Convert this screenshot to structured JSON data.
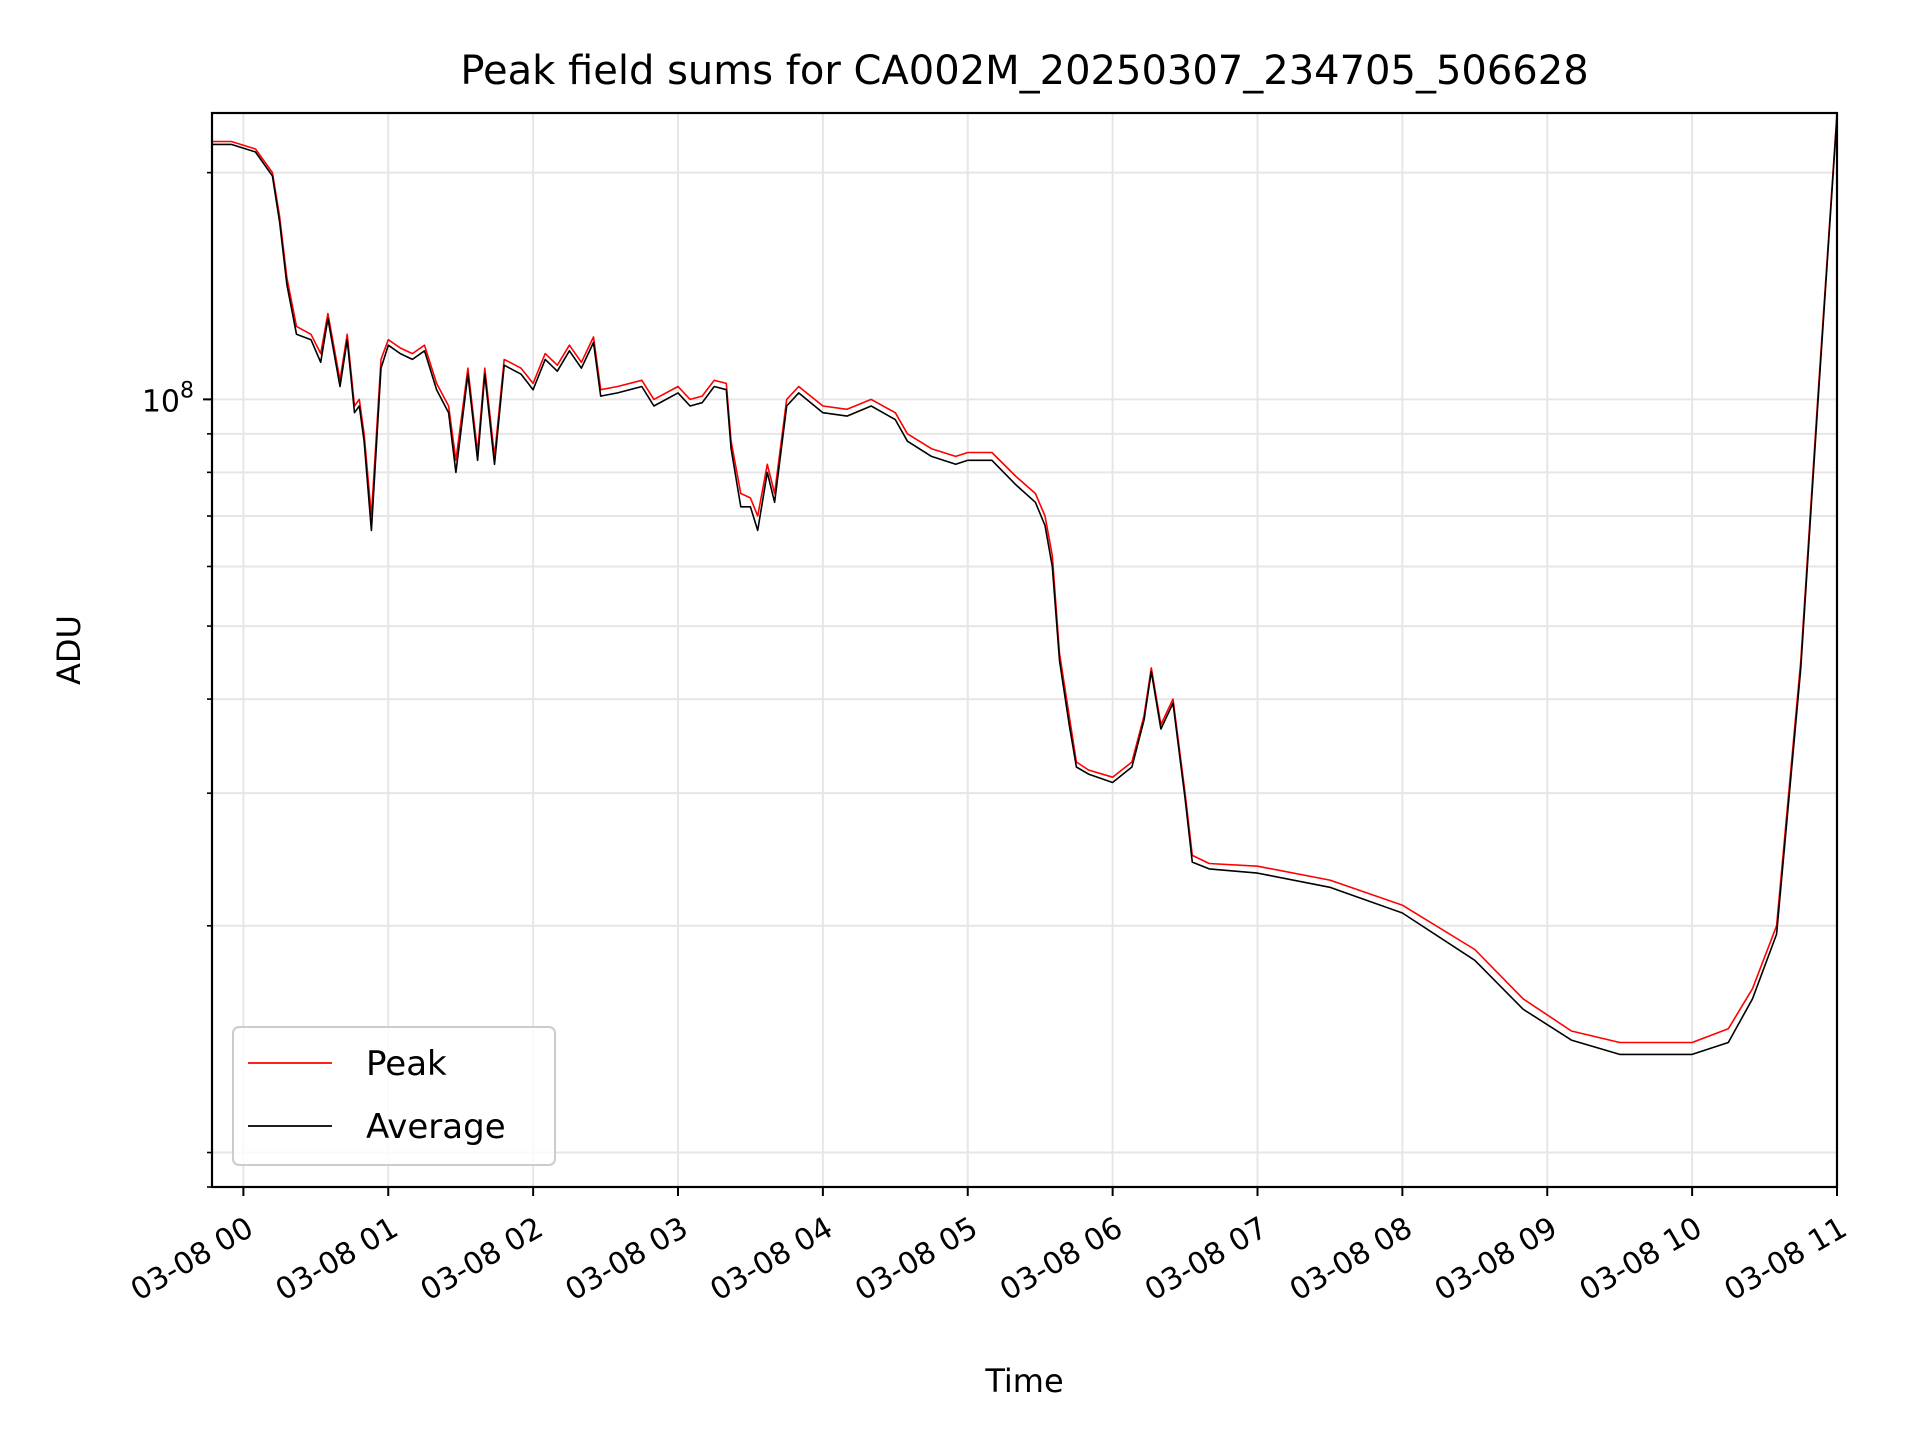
{
  "chart_data": {
    "type": "line",
    "title": "Peak field sums for CA002M_20250307_234705_506628",
    "xlabel": "Time",
    "ylabel": "ADU",
    "y_scale": "log",
    "y_tick_label": {
      "base": "10",
      "exponent": "8",
      "value": 100000000
    },
    "ylim": [
      9000000,
      240000000
    ],
    "xlim": [
      "2025-03-07 23:47",
      "2025-03-08 11:00"
    ],
    "x_ticks": [
      "03-08 00",
      "03-08 01",
      "03-08 02",
      "03-08 03",
      "03-08 04",
      "03-08 05",
      "03-08 06",
      "03-08 07",
      "03-08 08",
      "03-08 09",
      "03-08 10",
      "03-08 11"
    ],
    "x_tick_times": [
      "2025-03-08 00:00",
      "2025-03-08 01:00",
      "2025-03-08 02:00",
      "2025-03-08 03:00",
      "2025-03-08 04:00",
      "2025-03-08 05:00",
      "2025-03-08 06:00",
      "2025-03-08 07:00",
      "2025-03-08 08:00",
      "2025-03-08 09:00",
      "2025-03-08 10:00",
      "2025-03-08 11:00"
    ],
    "grid": true,
    "legend_position": "lower-left",
    "series": [
      {
        "name": "Peak",
        "color": "#ff0000",
        "points": [
          [
            "2025-03-07 23:47",
            220000000
          ],
          [
            "2025-03-07 23:55",
            220000000
          ],
          [
            "2025-03-08 00:05",
            215000000
          ],
          [
            "2025-03-08 00:12",
            200000000
          ],
          [
            "2025-03-08 00:15",
            175000000
          ],
          [
            "2025-03-08 00:18",
            145000000
          ],
          [
            "2025-03-08 00:22",
            125000000
          ],
          [
            "2025-03-08 00:28",
            122000000
          ],
          [
            "2025-03-08 00:32",
            115000000
          ],
          [
            "2025-03-08 00:35",
            130000000
          ],
          [
            "2025-03-08 00:40",
            106000000
          ],
          [
            "2025-03-08 00:43",
            122000000
          ],
          [
            "2025-03-08 00:46",
            98000000
          ],
          [
            "2025-03-08 00:48",
            100000000
          ],
          [
            "2025-03-08 00:50",
            90000000
          ],
          [
            "2025-03-08 00:53",
            70000000
          ],
          [
            "2025-03-08 00:57",
            113000000
          ],
          [
            "2025-03-08 01:00",
            120000000
          ],
          [
            "2025-03-08 01:05",
            117000000
          ],
          [
            "2025-03-08 01:10",
            115000000
          ],
          [
            "2025-03-08 01:15",
            118000000
          ],
          [
            "2025-03-08 01:20",
            105000000
          ],
          [
            "2025-03-08 01:25",
            98000000
          ],
          [
            "2025-03-08 01:28",
            83000000
          ],
          [
            "2025-03-08 01:33",
            110000000
          ],
          [
            "2025-03-08 01:37",
            85000000
          ],
          [
            "2025-03-08 01:40",
            110000000
          ],
          [
            "2025-03-08 01:44",
            84000000
          ],
          [
            "2025-03-08 01:48",
            113000000
          ],
          [
            "2025-03-08 01:55",
            110000000
          ],
          [
            "2025-03-08 02:00",
            105000000
          ],
          [
            "2025-03-08 02:05",
            115000000
          ],
          [
            "2025-03-08 02:10",
            111000000
          ],
          [
            "2025-03-08 02:15",
            118000000
          ],
          [
            "2025-03-08 02:20",
            112000000
          ],
          [
            "2025-03-08 02:25",
            121000000
          ],
          [
            "2025-03-08 02:28",
            103000000
          ],
          [
            "2025-03-08 02:35",
            104000000
          ],
          [
            "2025-03-08 02:45",
            106000000
          ],
          [
            "2025-03-08 02:50",
            100000000
          ],
          [
            "2025-03-08 03:00",
            104000000
          ],
          [
            "2025-03-08 03:05",
            100000000
          ],
          [
            "2025-03-08 03:10",
            101000000
          ],
          [
            "2025-03-08 03:15",
            106000000
          ],
          [
            "2025-03-08 03:20",
            105000000
          ],
          [
            "2025-03-08 03:22",
            88000000
          ],
          [
            "2025-03-08 03:26",
            75000000
          ],
          [
            "2025-03-08 03:30",
            74000000
          ],
          [
            "2025-03-08 03:33",
            70000000
          ],
          [
            "2025-03-08 03:37",
            82000000
          ],
          [
            "2025-03-08 03:40",
            75000000
          ],
          [
            "2025-03-08 03:45",
            100000000
          ],
          [
            "2025-03-08 03:50",
            104000000
          ],
          [
            "2025-03-08 04:00",
            98000000
          ],
          [
            "2025-03-08 04:10",
            97000000
          ],
          [
            "2025-03-08 04:20",
            100000000
          ],
          [
            "2025-03-08 04:30",
            96000000
          ],
          [
            "2025-03-08 04:35",
            90000000
          ],
          [
            "2025-03-08 04:45",
            86000000
          ],
          [
            "2025-03-08 04:55",
            84000000
          ],
          [
            "2025-03-08 05:00",
            85000000
          ],
          [
            "2025-03-08 05:10",
            85000000
          ],
          [
            "2025-03-08 05:20",
            79000000
          ],
          [
            "2025-03-08 05:28",
            75000000
          ],
          [
            "2025-03-08 05:32",
            70000000
          ],
          [
            "2025-03-08 05:35",
            62000000
          ],
          [
            "2025-03-08 05:38",
            46000000
          ],
          [
            "2025-03-08 05:42",
            38000000
          ],
          [
            "2025-03-08 05:45",
            33000000
          ],
          [
            "2025-03-08 05:50",
            32200000
          ],
          [
            "2025-03-08 06:00",
            31500000
          ],
          [
            "2025-03-08 06:08",
            33000000
          ],
          [
            "2025-03-08 06:13",
            38000000
          ],
          [
            "2025-03-08 06:16",
            44000000
          ],
          [
            "2025-03-08 06:20",
            37000000
          ],
          [
            "2025-03-08 06:25",
            40000000
          ],
          [
            "2025-03-08 06:30",
            30000000
          ],
          [
            "2025-03-08 06:33",
            24800000
          ],
          [
            "2025-03-08 06:40",
            24200000
          ],
          [
            "2025-03-08 07:00",
            24000000
          ],
          [
            "2025-03-08 07:30",
            23000000
          ],
          [
            "2025-03-08 08:00",
            21300000
          ],
          [
            "2025-03-08 08:30",
            18600000
          ],
          [
            "2025-03-08 08:50",
            16000000
          ],
          [
            "2025-03-08 09:10",
            14500000
          ],
          [
            "2025-03-08 09:30",
            14000000
          ],
          [
            "2025-03-08 10:00",
            14000000
          ],
          [
            "2025-03-08 10:15",
            14600000
          ],
          [
            "2025-03-08 10:25",
            16500000
          ],
          [
            "2025-03-08 10:35",
            20000000
          ],
          [
            "2025-03-08 10:45",
            45000000
          ],
          [
            "2025-03-08 10:52",
            100000000
          ],
          [
            "2025-03-08 11:00",
            240000000
          ]
        ]
      },
      {
        "name": "Average",
        "color": "#000000",
        "points": [
          [
            "2025-03-07 23:47",
            218000000
          ],
          [
            "2025-03-07 23:55",
            218000000
          ],
          [
            "2025-03-08 00:05",
            213000000
          ],
          [
            "2025-03-08 00:12",
            198000000
          ],
          [
            "2025-03-08 00:15",
            172000000
          ],
          [
            "2025-03-08 00:18",
            142000000
          ],
          [
            "2025-03-08 00:22",
            122000000
          ],
          [
            "2025-03-08 00:28",
            120000000
          ],
          [
            "2025-03-08 00:32",
            112000000
          ],
          [
            "2025-03-08 00:35",
            128000000
          ],
          [
            "2025-03-08 00:40",
            104000000
          ],
          [
            "2025-03-08 00:43",
            120000000
          ],
          [
            "2025-03-08 00:46",
            96000000
          ],
          [
            "2025-03-08 00:48",
            98000000
          ],
          [
            "2025-03-08 00:50",
            88000000
          ],
          [
            "2025-03-08 00:53",
            67000000
          ],
          [
            "2025-03-08 00:57",
            110000000
          ],
          [
            "2025-03-08 01:00",
            118000000
          ],
          [
            "2025-03-08 01:05",
            115000000
          ],
          [
            "2025-03-08 01:10",
            113000000
          ],
          [
            "2025-03-08 01:15",
            116000000
          ],
          [
            "2025-03-08 01:20",
            103000000
          ],
          [
            "2025-03-08 01:25",
            96000000
          ],
          [
            "2025-03-08 01:28",
            80000000
          ],
          [
            "2025-03-08 01:33",
            108000000
          ],
          [
            "2025-03-08 01:37",
            83000000
          ],
          [
            "2025-03-08 01:40",
            108000000
          ],
          [
            "2025-03-08 01:44",
            82000000
          ],
          [
            "2025-03-08 01:48",
            111000000
          ],
          [
            "2025-03-08 01:55",
            108000000
          ],
          [
            "2025-03-08 02:00",
            103000000
          ],
          [
            "2025-03-08 02:05",
            113000000
          ],
          [
            "2025-03-08 02:10",
            109000000
          ],
          [
            "2025-03-08 02:15",
            116000000
          ],
          [
            "2025-03-08 02:20",
            110000000
          ],
          [
            "2025-03-08 02:25",
            119000000
          ],
          [
            "2025-03-08 02:28",
            101000000
          ],
          [
            "2025-03-08 02:35",
            102000000
          ],
          [
            "2025-03-08 02:45",
            104000000
          ],
          [
            "2025-03-08 02:50",
            98000000
          ],
          [
            "2025-03-08 03:00",
            102000000
          ],
          [
            "2025-03-08 03:05",
            98000000
          ],
          [
            "2025-03-08 03:10",
            99000000
          ],
          [
            "2025-03-08 03:15",
            104000000
          ],
          [
            "2025-03-08 03:20",
            103000000
          ],
          [
            "2025-03-08 03:22",
            86000000
          ],
          [
            "2025-03-08 03:26",
            72000000
          ],
          [
            "2025-03-08 03:30",
            72000000
          ],
          [
            "2025-03-08 03:33",
            67000000
          ],
          [
            "2025-03-08 03:37",
            80000000
          ],
          [
            "2025-03-08 03:40",
            73000000
          ],
          [
            "2025-03-08 03:45",
            98000000
          ],
          [
            "2025-03-08 03:50",
            102000000
          ],
          [
            "2025-03-08 04:00",
            96000000
          ],
          [
            "2025-03-08 04:10",
            95000000
          ],
          [
            "2025-03-08 04:20",
            98000000
          ],
          [
            "2025-03-08 04:30",
            94000000
          ],
          [
            "2025-03-08 04:35",
            88000000
          ],
          [
            "2025-03-08 04:45",
            84000000
          ],
          [
            "2025-03-08 04:55",
            82000000
          ],
          [
            "2025-03-08 05:00",
            83000000
          ],
          [
            "2025-03-08 05:10",
            83000000
          ],
          [
            "2025-03-08 05:20",
            77000000
          ],
          [
            "2025-03-08 05:28",
            73000000
          ],
          [
            "2025-03-08 05:32",
            68000000
          ],
          [
            "2025-03-08 05:35",
            60000000
          ],
          [
            "2025-03-08 05:38",
            45000000
          ],
          [
            "2025-03-08 05:42",
            37000000
          ],
          [
            "2025-03-08 05:45",
            32500000
          ],
          [
            "2025-03-08 05:50",
            31800000
          ],
          [
            "2025-03-08 06:00",
            31000000
          ],
          [
            "2025-03-08 06:08",
            32500000
          ],
          [
            "2025-03-08 06:13",
            37500000
          ],
          [
            "2025-03-08 06:16",
            43500000
          ],
          [
            "2025-03-08 06:20",
            36500000
          ],
          [
            "2025-03-08 06:25",
            39500000
          ],
          [
            "2025-03-08 06:30",
            29500000
          ],
          [
            "2025-03-08 06:33",
            24300000
          ],
          [
            "2025-03-08 06:40",
            23800000
          ],
          [
            "2025-03-08 07:00",
            23500000
          ],
          [
            "2025-03-08 07:30",
            22500000
          ],
          [
            "2025-03-08 08:00",
            20800000
          ],
          [
            "2025-03-08 08:30",
            18000000
          ],
          [
            "2025-03-08 08:50",
            15500000
          ],
          [
            "2025-03-08 09:10",
            14100000
          ],
          [
            "2025-03-08 09:30",
            13500000
          ],
          [
            "2025-03-08 10:00",
            13500000
          ],
          [
            "2025-03-08 10:15",
            14000000
          ],
          [
            "2025-03-08 10:25",
            16000000
          ],
          [
            "2025-03-08 10:35",
            19500000
          ],
          [
            "2025-03-08 10:45",
            44000000
          ],
          [
            "2025-03-08 10:52",
            98000000
          ],
          [
            "2025-03-08 11:00",
            238000000
          ]
        ]
      }
    ]
  }
}
